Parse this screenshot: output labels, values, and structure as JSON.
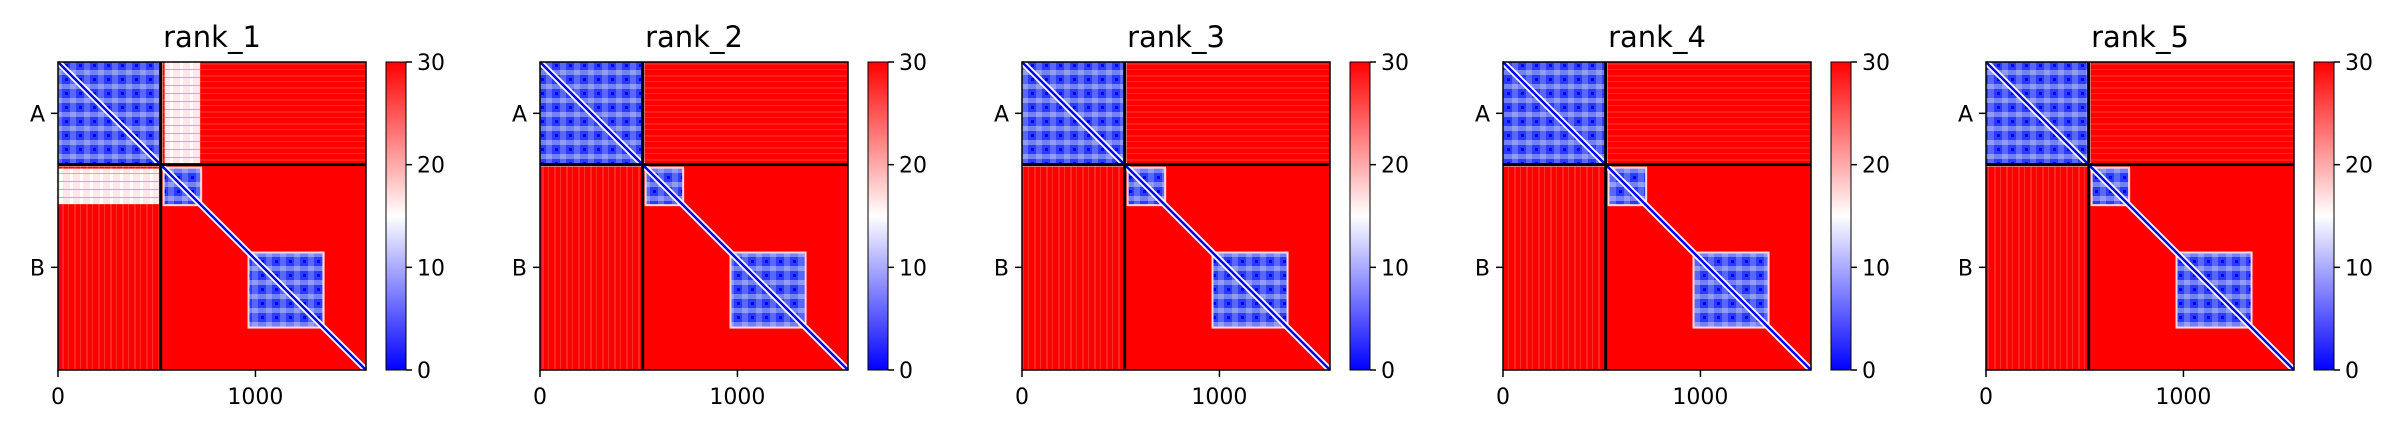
{
  "figure": {
    "colors": {
      "low": "#0000ff",
      "mid": "#ffffff",
      "high": "#ff0000",
      "frame": "#000000"
    },
    "colorbar": {
      "type": "colorbar",
      "range": [
        0,
        30
      ],
      "ticks": [
        "0",
        "10",
        "20",
        "30"
      ],
      "colormap": "bwr"
    }
  },
  "chart_data": [
    {
      "type": "heatmap",
      "title": "rank_1",
      "xlim": [
        0,
        1560
      ],
      "ylim": [
        1560,
        0
      ],
      "xticks": [
        {
          "value": 0,
          "label": "0"
        },
        {
          "value": 1000,
          "label": "1000"
        }
      ],
      "chain_boundary": 520,
      "chains": [
        {
          "label": "A",
          "start": 0,
          "end": 520
        },
        {
          "label": "B",
          "start": 520,
          "end": 1560
        }
      ],
      "blue_blocks": [
        [
          0,
          520,
          0,
          520
        ],
        [
          540,
          720,
          540,
          720
        ],
        [
          970,
          1340,
          970,
          1340
        ]
      ],
      "interchain_whitish_blocks": [
        [
          0,
          520,
          540,
          720
        ],
        [
          540,
          720,
          0,
          520
        ]
      ],
      "value_range": [
        0,
        30
      ]
    },
    {
      "type": "heatmap",
      "title": "rank_2",
      "xlim": [
        0,
        1560
      ],
      "ylim": [
        1560,
        0
      ],
      "xticks": [
        {
          "value": 0,
          "label": "0"
        },
        {
          "value": 1000,
          "label": "1000"
        }
      ],
      "chain_boundary": 520,
      "chains": [
        {
          "label": "A",
          "start": 0,
          "end": 520
        },
        {
          "label": "B",
          "start": 520,
          "end": 1560
        }
      ],
      "blue_blocks": [
        [
          0,
          520,
          0,
          520
        ],
        [
          540,
          720,
          540,
          720
        ],
        [
          970,
          1340,
          970,
          1340
        ]
      ],
      "interchain_whitish_blocks": [],
      "value_range": [
        0,
        30
      ]
    },
    {
      "type": "heatmap",
      "title": "rank_3",
      "xlim": [
        0,
        1560
      ],
      "ylim": [
        1560,
        0
      ],
      "xticks": [
        {
          "value": 0,
          "label": "0"
        },
        {
          "value": 1000,
          "label": "1000"
        }
      ],
      "chain_boundary": 520,
      "chains": [
        {
          "label": "A",
          "start": 0,
          "end": 520
        },
        {
          "label": "B",
          "start": 520,
          "end": 1560
        }
      ],
      "blue_blocks": [
        [
          0,
          520,
          0,
          520
        ],
        [
          540,
          720,
          540,
          720
        ],
        [
          970,
          1340,
          970,
          1340
        ]
      ],
      "interchain_whitish_blocks": [],
      "value_range": [
        0,
        30
      ]
    },
    {
      "type": "heatmap",
      "title": "rank_4",
      "xlim": [
        0,
        1560
      ],
      "ylim": [
        1560,
        0
      ],
      "xticks": [
        {
          "value": 0,
          "label": "0"
        },
        {
          "value": 1000,
          "label": "1000"
        }
      ],
      "chain_boundary": 520,
      "chains": [
        {
          "label": "A",
          "start": 0,
          "end": 520
        },
        {
          "label": "B",
          "start": 520,
          "end": 1560
        }
      ],
      "blue_blocks": [
        [
          0,
          520,
          0,
          520
        ],
        [
          540,
          720,
          540,
          720
        ],
        [
          970,
          1340,
          970,
          1340
        ]
      ],
      "interchain_whitish_blocks": [],
      "value_range": [
        0,
        30
      ]
    },
    {
      "type": "heatmap",
      "title": "rank_5",
      "xlim": [
        0,
        1560
      ],
      "ylim": [
        1560,
        0
      ],
      "xticks": [
        {
          "value": 0,
          "label": "0"
        },
        {
          "value": 1000,
          "label": "1000"
        }
      ],
      "chain_boundary": 520,
      "chains": [
        {
          "label": "A",
          "start": 0,
          "end": 520
        },
        {
          "label": "B",
          "start": 520,
          "end": 1560
        }
      ],
      "blue_blocks": [
        [
          0,
          520,
          0,
          520
        ],
        [
          540,
          720,
          540,
          720
        ],
        [
          970,
          1340,
          970,
          1340
        ]
      ],
      "interchain_whitish_blocks": [],
      "value_range": [
        0,
        30
      ]
    }
  ]
}
